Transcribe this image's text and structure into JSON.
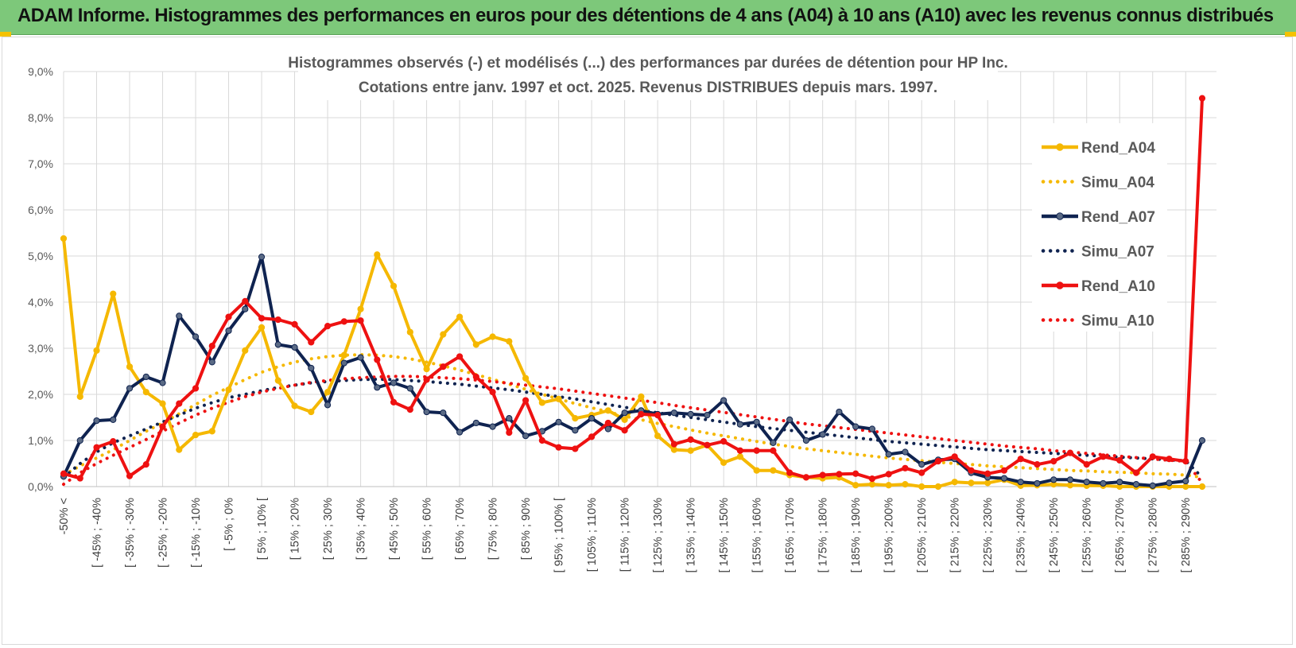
{
  "banner": {
    "title": "ADAM Informe. Histogrammes des performances en euros pour des détentions de 4 ans (A04) à 10 ans (A10) avec les revenus connus distribués"
  },
  "colors": {
    "banner_bg": "#7dc87a",
    "a04": "#f5b800",
    "a07": "#0f2350",
    "a07_marker": "#5a6a85",
    "a10": "#ee1111",
    "grid": "#d9d9d9"
  },
  "chart_data": {
    "type": "line",
    "title": [
      "Histogrammes observés (-) et modélisés (...) des performances par durées de détention pour HP Inc.",
      "Cotations entre janv. 1997 et oct. 2025.  Revenus DISTRIBUES depuis mars. 1997."
    ],
    "ylim": [
      0,
      9
    ],
    "yticks": [
      "0,0%",
      "1,0%",
      "2,0%",
      "3,0%",
      "4,0%",
      "5,0%",
      "6,0%",
      "7,0%",
      "8,0%",
      "9,0%"
    ],
    "x_tick_labels": [
      "-50% <",
      "[ -45% ; -40%",
      "[ -35% ; -30%",
      "[ -25% ; -20%",
      "[ -15% ; -10%",
      "[ -5% ; 0%",
      "[ 5% ; 10% [",
      "[ 15% ; 20%",
      "[ 25% ; 30%",
      "[ 35% ; 40%",
      "[ 45% ; 50%",
      "[ 55% ; 60%",
      "[ 65% ; 70%",
      "[ 75% ; 80%",
      "[ 85% ; 90%",
      "[ 95% ; 100% [",
      "[ 105% ; 110%",
      "[ 115% ; 120%",
      "[ 125% ; 130%",
      "[ 135% ; 140%",
      "[ 145% ; 150%",
      "[ 155% ; 160%",
      "[ 165% ; 170%",
      "[ 175% ; 180%",
      "[ 185% ; 190%",
      "[ 195% ; 200%",
      "[ 205% ; 210%",
      "[ 215% ; 220%",
      "[ 225% ; 230%",
      "[ 235% ; 240%",
      "[ 245% ; 250%",
      "[ 255% ; 260%",
      "[ 265% ; 270%",
      "[ 275% ; 280%",
      "[ 285% ; 290%"
    ],
    "n_points": 70,
    "ylabel": "",
    "xlabel": "",
    "legend_position": "right",
    "series": [
      {
        "name": "Rend_A04",
        "style": "solid",
        "color": "#f5b800",
        "values": [
          5.38,
          1.95,
          2.95,
          4.18,
          2.6,
          2.05,
          1.8,
          0.8,
          1.12,
          1.2,
          2.1,
          2.95,
          3.45,
          2.3,
          1.75,
          1.62,
          2.05,
          2.85,
          3.85,
          5.03,
          4.35,
          3.35,
          2.55,
          3.3,
          3.68,
          3.08,
          3.25,
          3.15,
          2.35,
          1.82,
          1.9,
          1.48,
          1.55,
          1.65,
          1.45,
          1.95,
          1.1,
          0.8,
          0.78,
          0.9,
          0.52,
          0.65,
          0.35,
          0.35,
          0.25,
          0.2,
          0.18,
          0.2,
          0.03,
          0.05,
          0.03,
          0.05,
          0.0,
          0.0,
          0.1,
          0.08,
          0.08,
          0.15,
          0.02,
          0.03,
          0.05,
          0.03,
          0.02,
          0.02,
          0.0,
          0.0,
          0.0,
          0.0,
          0.0,
          0.0
        ]
      },
      {
        "name": "Simu_A04",
        "style": "dotted",
        "color": "#f5b800",
        "values": [
          0.25,
          0.45,
          0.62,
          0.8,
          1.0,
          1.2,
          1.38,
          1.58,
          1.78,
          1.98,
          2.15,
          2.32,
          2.48,
          2.6,
          2.7,
          2.77,
          2.82,
          2.85,
          2.86,
          2.85,
          2.82,
          2.77,
          2.7,
          2.62,
          2.53,
          2.43,
          2.33,
          2.22,
          2.11,
          2.0,
          1.9,
          1.8,
          1.71,
          1.62,
          1.53,
          1.45,
          1.37,
          1.3,
          1.23,
          1.16,
          1.1,
          1.04,
          0.98,
          0.92,
          0.87,
          0.82,
          0.78,
          0.74,
          0.7,
          0.66,
          0.62,
          0.59,
          0.56,
          0.53,
          0.5,
          0.48,
          0.45,
          0.43,
          0.41,
          0.39,
          0.37,
          0.35,
          0.34,
          0.32,
          0.31,
          0.3,
          0.28,
          0.27,
          0.25,
          0.2
        ]
      },
      {
        "name": "Rend_A07",
        "style": "solid",
        "color": "#0f2350",
        "values": [
          0.22,
          1.0,
          1.43,
          1.45,
          2.13,
          2.38,
          2.25,
          3.7,
          3.25,
          2.7,
          3.38,
          3.85,
          4.98,
          3.08,
          3.02,
          2.57,
          1.77,
          2.68,
          2.8,
          2.15,
          2.25,
          2.13,
          1.62,
          1.6,
          1.18,
          1.38,
          1.3,
          1.48,
          1.1,
          1.2,
          1.4,
          1.22,
          1.48,
          1.25,
          1.6,
          1.65,
          1.57,
          1.6,
          1.57,
          1.55,
          1.87,
          1.35,
          1.4,
          0.95,
          1.45,
          1.0,
          1.13,
          1.62,
          1.3,
          1.25,
          0.7,
          0.75,
          0.48,
          0.58,
          0.6,
          0.3,
          0.2,
          0.18,
          0.1,
          0.07,
          0.15,
          0.15,
          0.1,
          0.07,
          0.1,
          0.05,
          0.02,
          0.08,
          0.12,
          1.0
        ]
      },
      {
        "name": "Simu_A07",
        "style": "dotted",
        "color": "#0f2350",
        "values": [
          0.2,
          0.5,
          0.75,
          0.95,
          1.1,
          1.25,
          1.4,
          1.55,
          1.7,
          1.82,
          1.93,
          2.0,
          2.08,
          2.15,
          2.2,
          2.25,
          2.28,
          2.3,
          2.32,
          2.33,
          2.32,
          2.3,
          2.28,
          2.25,
          2.22,
          2.18,
          2.14,
          2.1,
          2.05,
          2.0,
          1.95,
          1.9,
          1.84,
          1.78,
          1.72,
          1.66,
          1.6,
          1.55,
          1.5,
          1.45,
          1.4,
          1.35,
          1.3,
          1.26,
          1.22,
          1.18,
          1.14,
          1.1,
          1.06,
          1.02,
          0.98,
          0.95,
          0.92,
          0.89,
          0.86,
          0.83,
          0.8,
          0.78,
          0.76,
          0.74,
          0.72,
          0.7,
          0.68,
          0.66,
          0.64,
          0.62,
          0.6,
          0.58,
          0.56,
          0.2
        ]
      },
      {
        "name": "Rend_A10",
        "style": "solid",
        "color": "#ee1111",
        "values": [
          0.28,
          0.18,
          0.85,
          0.98,
          0.23,
          0.48,
          1.3,
          1.8,
          2.13,
          3.05,
          3.68,
          4.02,
          3.65,
          3.62,
          3.52,
          3.13,
          3.48,
          3.58,
          3.6,
          2.75,
          1.83,
          1.67,
          2.32,
          2.6,
          2.82,
          2.38,
          2.05,
          1.17,
          1.87,
          1.0,
          0.85,
          0.82,
          1.08,
          1.38,
          1.22,
          1.57,
          1.55,
          0.92,
          1.02,
          0.9,
          0.98,
          0.78,
          0.78,
          0.78,
          0.3,
          0.2,
          0.25,
          0.27,
          0.28,
          0.17,
          0.27,
          0.4,
          0.3,
          0.55,
          0.65,
          0.35,
          0.28,
          0.35,
          0.6,
          0.48,
          0.55,
          0.73,
          0.48,
          0.65,
          0.57,
          0.3,
          0.65,
          0.6,
          0.55,
          8.42
        ]
      },
      {
        "name": "Simu_A10",
        "style": "dotted",
        "color": "#ee1111",
        "values": [
          0.05,
          0.3,
          0.5,
          0.68,
          0.85,
          1.02,
          1.2,
          1.38,
          1.55,
          1.7,
          1.83,
          1.95,
          2.05,
          2.13,
          2.2,
          2.26,
          2.3,
          2.34,
          2.36,
          2.38,
          2.39,
          2.39,
          2.38,
          2.36,
          2.34,
          2.31,
          2.28,
          2.24,
          2.2,
          2.16,
          2.12,
          2.07,
          2.02,
          1.97,
          1.92,
          1.87,
          1.82,
          1.76,
          1.71,
          1.66,
          1.61,
          1.56,
          1.51,
          1.46,
          1.41,
          1.36,
          1.32,
          1.28,
          1.24,
          1.2,
          1.16,
          1.12,
          1.08,
          1.04,
          1.0,
          0.96,
          0.92,
          0.88,
          0.85,
          0.82,
          0.78,
          0.75,
          0.72,
          0.69,
          0.66,
          0.63,
          0.6,
          0.57,
          0.55,
          0.08
        ]
      }
    ]
  }
}
